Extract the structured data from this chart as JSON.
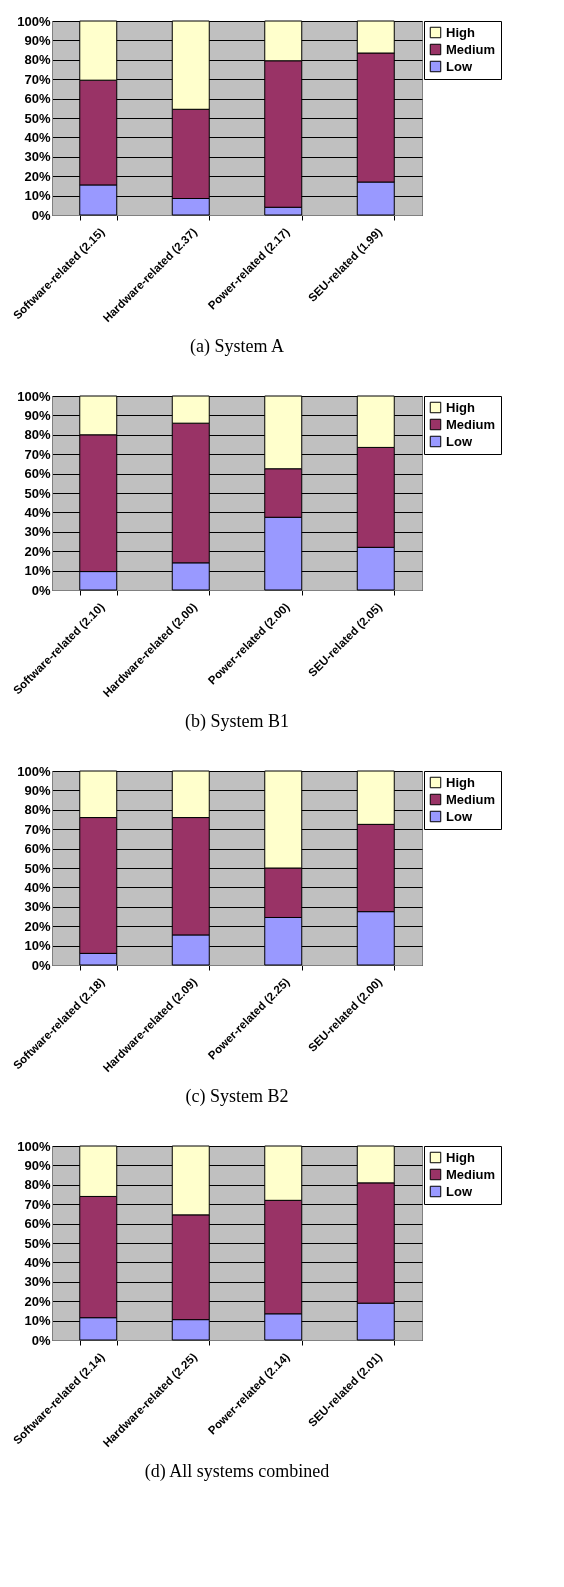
{
  "chart_data": [
    {
      "type": "bar",
      "title": "(a) System A",
      "categories": [
        "Software-related (2.15)",
        "Hardware-related (2.37)",
        "Power-related (2.17)",
        "SEU-related (1.99)"
      ],
      "stacked": true,
      "ylim": [
        0,
        100
      ],
      "yticks": [
        {
          "value": 0,
          "label": "0%"
        },
        {
          "value": 10,
          "label": "10%"
        },
        {
          "value": 20,
          "label": "20%"
        },
        {
          "value": 30,
          "label": "30%"
        },
        {
          "value": 40,
          "label": "40%"
        },
        {
          "value": 50,
          "label": "50%"
        },
        {
          "value": 60,
          "label": "60%"
        },
        {
          "value": 70,
          "label": "70%"
        },
        {
          "value": 80,
          "label": "80%"
        },
        {
          "value": 90,
          "label": "90%"
        },
        {
          "value": 100,
          "label": "100%"
        }
      ],
      "grid": "y",
      "legend": "right",
      "series": [
        {
          "name": "Low",
          "color": "#9999ff",
          "values": [
            15.5,
            8.5,
            4,
            17
          ]
        },
        {
          "name": "Medium",
          "color": "#993366",
          "values": [
            54,
            46,
            75.5,
            66.5
          ]
        },
        {
          "name": "High",
          "color": "#ffffcc",
          "values": [
            30.5,
            45.5,
            20.5,
            16.5
          ]
        }
      ]
    },
    {
      "type": "bar",
      "title": "(b) System B1",
      "categories": [
        "Software-related (2.10)",
        "Hardware-related (2.00)",
        "Power-related (2.00)",
        "SEU-related (2.05)"
      ],
      "stacked": true,
      "ylim": [
        0,
        100
      ],
      "yticks": [
        {
          "value": 0,
          "label": "0%"
        },
        {
          "value": 10,
          "label": "10%"
        },
        {
          "value": 20,
          "label": "20%"
        },
        {
          "value": 30,
          "label": "30%"
        },
        {
          "value": 40,
          "label": "40%"
        },
        {
          "value": 50,
          "label": "50%"
        },
        {
          "value": 60,
          "label": "60%"
        },
        {
          "value": 70,
          "label": "70%"
        },
        {
          "value": 80,
          "label": "80%"
        },
        {
          "value": 90,
          "label": "90%"
        },
        {
          "value": 100,
          "label": "100%"
        }
      ],
      "grid": "y",
      "legend": "right",
      "series": [
        {
          "name": "Low",
          "color": "#9999ff",
          "values": [
            9.5,
            14,
            37.5,
            22
          ]
        },
        {
          "name": "Medium",
          "color": "#993366",
          "values": [
            70.5,
            72,
            25,
            51.5
          ]
        },
        {
          "name": "High",
          "color": "#ffffcc",
          "values": [
            20,
            14,
            37.5,
            26.5
          ]
        }
      ]
    },
    {
      "type": "bar",
      "title": "(c) System B2",
      "categories": [
        "Software-related (2.18)",
        "Hardware-related (2.09)",
        "Power-related (2.25)",
        "SEU-related (2.00)"
      ],
      "stacked": true,
      "ylim": [
        0,
        100
      ],
      "yticks": [
        {
          "value": 0,
          "label": "0%"
        },
        {
          "value": 10,
          "label": "10%"
        },
        {
          "value": 20,
          "label": "20%"
        },
        {
          "value": 30,
          "label": "30%"
        },
        {
          "value": 40,
          "label": "40%"
        },
        {
          "value": 50,
          "label": "50%"
        },
        {
          "value": 60,
          "label": "60%"
        },
        {
          "value": 70,
          "label": "70%"
        },
        {
          "value": 80,
          "label": "80%"
        },
        {
          "value": 90,
          "label": "90%"
        },
        {
          "value": 100,
          "label": "100%"
        }
      ],
      "grid": "y",
      "legend": "right",
      "series": [
        {
          "name": "Low",
          "color": "#9999ff",
          "values": [
            6,
            15.5,
            24.5,
            27.5
          ]
        },
        {
          "name": "Medium",
          "color": "#993366",
          "values": [
            70,
            60.5,
            25.5,
            45
          ]
        },
        {
          "name": "High",
          "color": "#ffffcc",
          "values": [
            24,
            24,
            50,
            27.5
          ]
        }
      ]
    },
    {
      "type": "bar",
      "title": "(d) All systems combined",
      "categories": [
        "Software-related (2.14)",
        "Hardware-related (2.25)",
        "Power-related (2.14)",
        "SEU-related (2.01)"
      ],
      "stacked": true,
      "ylim": [
        0,
        100
      ],
      "yticks": [
        {
          "value": 0,
          "label": "0%"
        },
        {
          "value": 10,
          "label": "10%"
        },
        {
          "value": 20,
          "label": "20%"
        },
        {
          "value": 30,
          "label": "30%"
        },
        {
          "value": 40,
          "label": "40%"
        },
        {
          "value": 50,
          "label": "50%"
        },
        {
          "value": 60,
          "label": "60%"
        },
        {
          "value": 70,
          "label": "70%"
        },
        {
          "value": 80,
          "label": "80%"
        },
        {
          "value": 90,
          "label": "90%"
        },
        {
          "value": 100,
          "label": "100%"
        }
      ],
      "grid": "y",
      "legend": "right",
      "series": [
        {
          "name": "Low",
          "color": "#9999ff",
          "values": [
            11.5,
            10.5,
            13.5,
            19
          ]
        },
        {
          "name": "Medium",
          "color": "#993366",
          "values": [
            62.5,
            54,
            58.5,
            62
          ]
        },
        {
          "name": "High",
          "color": "#ffffcc",
          "values": [
            26,
            35.5,
            28,
            19
          ]
        }
      ]
    }
  ]
}
